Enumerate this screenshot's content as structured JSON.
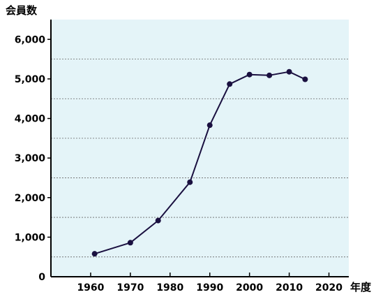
{
  "chart_data": {
    "type": "line",
    "title": "",
    "ylabel": "会員数",
    "xlabel": "年度",
    "x": [
      1961,
      1970,
      1977,
      1985,
      1990,
      1995,
      2000,
      2005,
      2010,
      2014
    ],
    "series": [
      {
        "values": [
          580,
          860,
          1420,
          2390,
          3830,
          4870,
          5110,
          5090,
          5180,
          4990
        ]
      }
    ],
    "xticks": [
      1960,
      1970,
      1980,
      1990,
      2000,
      2010,
      2020
    ],
    "xtick_labels": [
      "1960",
      "1970",
      "1980",
      "1990",
      "2000",
      "2010",
      "2020"
    ],
    "yticks": [
      0,
      1000,
      2000,
      3000,
      4000,
      5000,
      6000
    ],
    "ytick_labels": [
      "0",
      "1,000",
      "2,000",
      "3,000",
      "4,000",
      "5,000",
      "6,000"
    ],
    "xlim": [
      1950,
      2025
    ],
    "ylim": [
      0,
      6500
    ],
    "gridlines": [
      500,
      1500,
      2500,
      3500,
      4500,
      5500
    ],
    "grid": true,
    "colors": {
      "plot_background": "#e4f4f8",
      "line": "#1a1040",
      "marker": "#1a1040",
      "grid": "#666666",
      "axis": "#000000"
    }
  }
}
